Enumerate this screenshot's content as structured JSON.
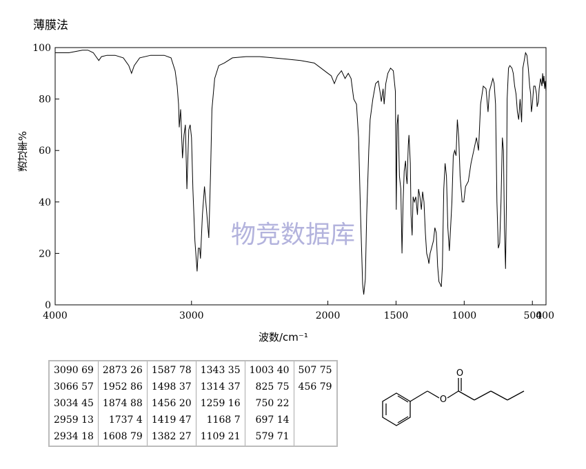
{
  "header": {
    "method": "薄膜法"
  },
  "watermark": "物竞数据库",
  "chart_data": {
    "type": "line",
    "xlabel": "波数/cm⁻¹",
    "ylabel": "透过率%",
    "xlim": [
      4000,
      400
    ],
    "ylim": [
      0,
      100
    ],
    "x_ticks": [
      "4000",
      "3000",
      "2000",
      "1500",
      "1000",
      "500",
      "400"
    ],
    "y_ticks": [
      "0",
      "20",
      "40",
      "60",
      "80",
      "100"
    ],
    "grid": false,
    "series": [
      {
        "points": [
          [
            4000,
            98
          ],
          [
            3900,
            98
          ],
          [
            3850,
            98.5
          ],
          [
            3800,
            99
          ],
          [
            3760,
            99
          ],
          [
            3720,
            98
          ],
          [
            3700,
            96.5
          ],
          [
            3680,
            95
          ],
          [
            3660,
            96.5
          ],
          [
            3620,
            97
          ],
          [
            3560,
            97
          ],
          [
            3500,
            96
          ],
          [
            3460,
            93
          ],
          [
            3440,
            90
          ],
          [
            3420,
            93
          ],
          [
            3380,
            96
          ],
          [
            3300,
            97
          ],
          [
            3200,
            97
          ],
          [
            3150,
            96
          ],
          [
            3120,
            91
          ],
          [
            3105,
            85
          ],
          [
            3095,
            78
          ],
          [
            3090,
            69
          ],
          [
            3080,
            76
          ],
          [
            3066,
            57
          ],
          [
            3055,
            66
          ],
          [
            3045,
            70
          ],
          [
            3034,
            45
          ],
          [
            3020,
            68
          ],
          [
            3010,
            70
          ],
          [
            3000,
            65
          ],
          [
            2990,
            45
          ],
          [
            2975,
            25
          ],
          [
            2959,
            13
          ],
          [
            2950,
            22
          ],
          [
            2940,
            22
          ],
          [
            2934,
            18
          ],
          [
            2920,
            35
          ],
          [
            2905,
            46
          ],
          [
            2890,
            37
          ],
          [
            2873,
            26
          ],
          [
            2860,
            52
          ],
          [
            2850,
            76
          ],
          [
            2830,
            88
          ],
          [
            2800,
            93
          ],
          [
            2760,
            94
          ],
          [
            2700,
            96
          ],
          [
            2600,
            96.5
          ],
          [
            2500,
            96.5
          ],
          [
            2400,
            96
          ],
          [
            2300,
            95.5
          ],
          [
            2200,
            95
          ],
          [
            2100,
            94
          ],
          [
            2050,
            92
          ],
          [
            2000,
            90
          ],
          [
            1975,
            89
          ],
          [
            1952,
            86
          ],
          [
            1930,
            89
          ],
          [
            1900,
            91
          ],
          [
            1874,
            88
          ],
          [
            1850,
            90
          ],
          [
            1830,
            88
          ],
          [
            1810,
            80
          ],
          [
            1790,
            78
          ],
          [
            1775,
            65
          ],
          [
            1760,
            35
          ],
          [
            1745,
            8
          ],
          [
            1737,
            4
          ],
          [
            1725,
            10
          ],
          [
            1715,
            35
          ],
          [
            1700,
            60
          ],
          [
            1690,
            72
          ],
          [
            1670,
            80
          ],
          [
            1650,
            86
          ],
          [
            1630,
            87
          ],
          [
            1615,
            82
          ],
          [
            1608,
            79
          ],
          [
            1595,
            84
          ],
          [
            1587,
            78
          ],
          [
            1575,
            86
          ],
          [
            1560,
            90
          ],
          [
            1540,
            92
          ],
          [
            1520,
            91
          ],
          [
            1505,
            83
          ],
          [
            1498,
            37
          ],
          [
            1492,
            70
          ],
          [
            1485,
            74
          ],
          [
            1475,
            50
          ],
          [
            1465,
            45
          ],
          [
            1456,
            20
          ],
          [
            1448,
            40
          ],
          [
            1440,
            52
          ],
          [
            1430,
            56
          ],
          [
            1425,
            50
          ],
          [
            1419,
            47
          ],
          [
            1410,
            62
          ],
          [
            1405,
            66
          ],
          [
            1395,
            55
          ],
          [
            1390,
            35
          ],
          [
            1382,
            27
          ],
          [
            1375,
            42
          ],
          [
            1365,
            40
          ],
          [
            1355,
            42
          ],
          [
            1343,
            35
          ],
          [
            1335,
            45
          ],
          [
            1325,
            42
          ],
          [
            1314,
            37
          ],
          [
            1305,
            44
          ],
          [
            1295,
            40
          ],
          [
            1285,
            28
          ],
          [
            1275,
            20
          ],
          [
            1265,
            18
          ],
          [
            1259,
            16
          ],
          [
            1250,
            20
          ],
          [
            1240,
            22
          ],
          [
            1225,
            25
          ],
          [
            1215,
            30
          ],
          [
            1205,
            28
          ],
          [
            1195,
            15
          ],
          [
            1185,
            9
          ],
          [
            1175,
            8
          ],
          [
            1168,
            7
          ],
          [
            1160,
            15
          ],
          [
            1150,
            45
          ],
          [
            1140,
            55
          ],
          [
            1130,
            50
          ],
          [
            1120,
            30
          ],
          [
            1109,
            21
          ],
          [
            1100,
            30
          ],
          [
            1090,
            40
          ],
          [
            1080,
            58
          ],
          [
            1070,
            60
          ],
          [
            1060,
            58
          ],
          [
            1050,
            72
          ],
          [
            1040,
            65
          ],
          [
            1030,
            50
          ],
          [
            1015,
            40
          ],
          [
            1003,
            40
          ],
          [
            990,
            46
          ],
          [
            970,
            48
          ],
          [
            950,
            55
          ],
          [
            930,
            60
          ],
          [
            910,
            65
          ],
          [
            895,
            60
          ],
          [
            880,
            78
          ],
          [
            860,
            85
          ],
          [
            840,
            84
          ],
          [
            825,
            75
          ],
          [
            815,
            83
          ],
          [
            800,
            86
          ],
          [
            790,
            88
          ],
          [
            780,
            86
          ],
          [
            770,
            78
          ],
          [
            760,
            40
          ],
          [
            750,
            22
          ],
          [
            740,
            24
          ],
          [
            730,
            40
          ],
          [
            720,
            65
          ],
          [
            712,
            60
          ],
          [
            705,
            30
          ],
          [
            697,
            14
          ],
          [
            690,
            40
          ],
          [
            685,
            80
          ],
          [
            675,
            92
          ],
          [
            665,
            93
          ],
          [
            650,
            92
          ],
          [
            640,
            90
          ],
          [
            630,
            85
          ],
          [
            620,
            82
          ],
          [
            610,
            75
          ],
          [
            600,
            72
          ],
          [
            590,
            80
          ],
          [
            579,
            71
          ],
          [
            570,
            92
          ],
          [
            560,
            95
          ],
          [
            550,
            98
          ],
          [
            540,
            97
          ],
          [
            530,
            92
          ],
          [
            520,
            85
          ],
          [
            513,
            82
          ],
          [
            507,
            75
          ],
          [
            500,
            78
          ],
          [
            490,
            85
          ],
          [
            480,
            85
          ],
          [
            470,
            82
          ],
          [
            465,
            77
          ],
          [
            456,
            79
          ],
          [
            450,
            84
          ],
          [
            440,
            88
          ],
          [
            430,
            85
          ],
          [
            425,
            90
          ],
          [
            420,
            86
          ],
          [
            415,
            89
          ],
          [
            410,
            84
          ],
          [
            405,
            87
          ],
          [
            400,
            83
          ]
        ]
      }
    ]
  },
  "peak_table": {
    "columns": [
      [
        "3090 69",
        "3066 57",
        "3034 45",
        "2959 13",
        "2934 18"
      ],
      [
        "2873 26",
        "1952 86",
        "1874 88",
        "1737   4",
        "1608 79"
      ],
      [
        "1587 78",
        "1498 37",
        "1456 20",
        "1419 47",
        "1382 27"
      ],
      [
        "1343 35",
        "1314 37",
        "1259 16",
        "1168   7",
        "1109 21"
      ],
      [
        "1003 40",
        "825 75",
        "750 22",
        "697 14",
        "579 71"
      ],
      [
        "507 75",
        "456 79"
      ]
    ]
  },
  "structure": {
    "oxygen_label_1": "O",
    "oxygen_label_2": "O"
  }
}
